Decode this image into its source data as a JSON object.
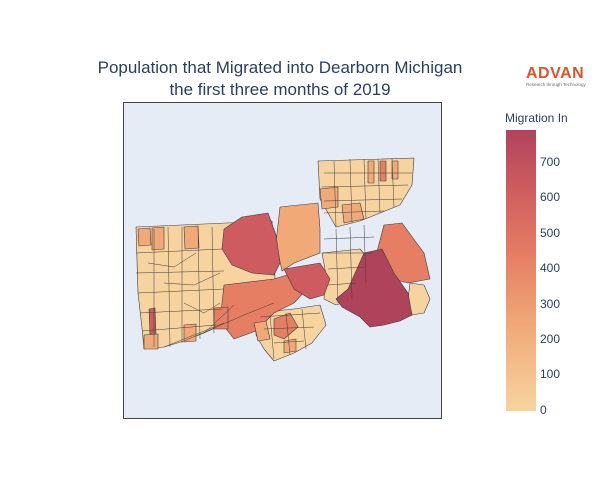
{
  "title": {
    "line1": "Population that Migrated into Dearborn Michigan",
    "line2": "the first three months of 2019"
  },
  "brand": {
    "name": "ADVAN",
    "tagline": "Research through Technology",
    "color": "#e0522d"
  },
  "colorbar": {
    "title": "Migration In",
    "ticks": [
      "0",
      "100",
      "200",
      "300",
      "400",
      "500",
      "600",
      "700"
    ],
    "colorscale": [
      "#f7d3a0",
      "#f1a978",
      "#e57e63",
      "#cd5b5f",
      "#b0435c"
    ],
    "range": [
      0,
      790
    ]
  },
  "map": {
    "background": "#e5ecf6",
    "outline_color": "#3d3d3d",
    "high_values": {
      "north_central_tract": 650,
      "southeast_tract": 760,
      "east_tract": 360,
      "central_west_tract": 400,
      "central_tract": 470,
      "south_central_tract": 330,
      "small_west_tract": 560
    }
  }
}
